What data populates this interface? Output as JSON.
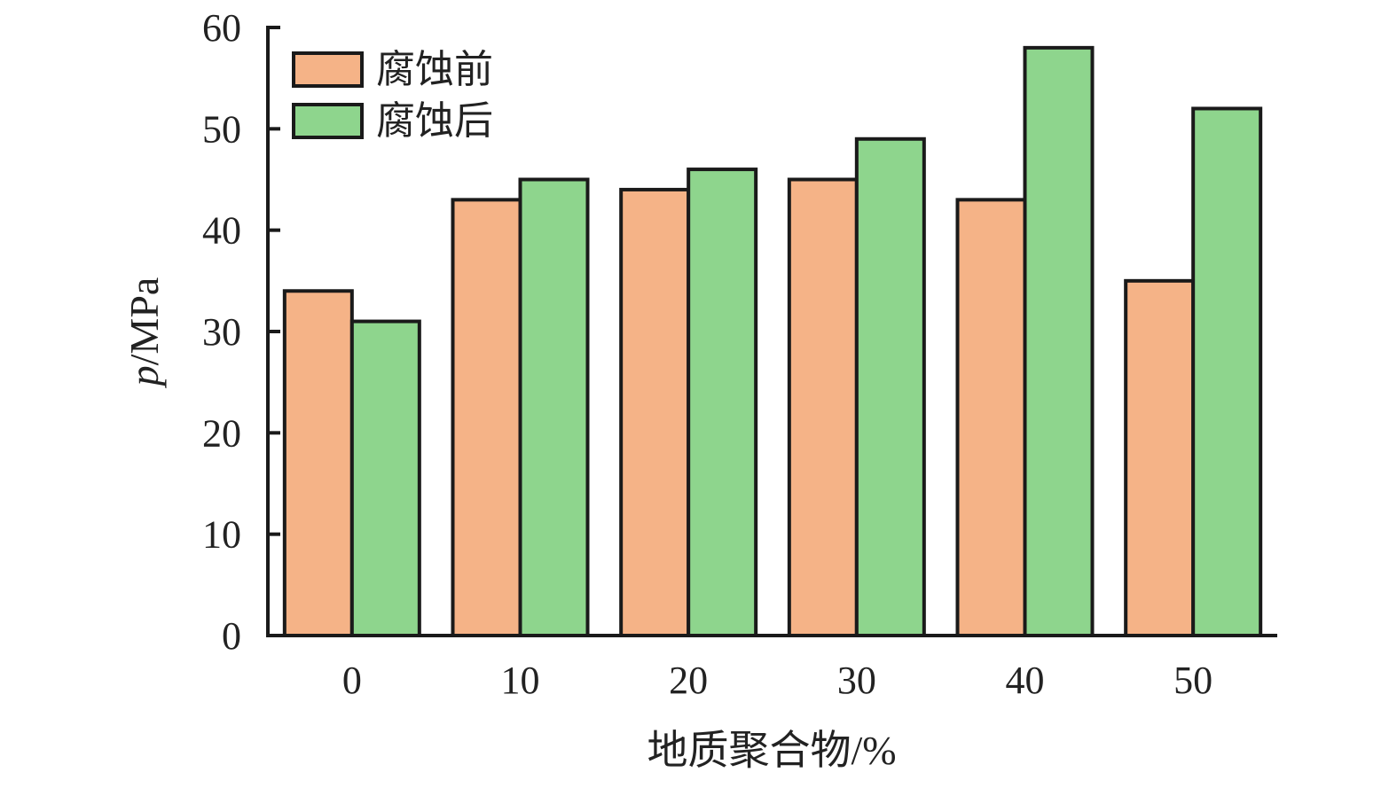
{
  "chart_data": {
    "type": "bar",
    "title": "",
    "xlabel": "地质聚合物/%",
    "ylabel_var": "p",
    "ylabel_unit": "/MPa",
    "categories": [
      "0",
      "10",
      "20",
      "30",
      "40",
      "50"
    ],
    "ylim": [
      0,
      60
    ],
    "yticks": [
      0,
      10,
      20,
      30,
      40,
      50,
      60
    ],
    "grid": false,
    "legend_position": "top-left",
    "series": [
      {
        "name": "腐蚀前",
        "color": "#F5B387",
        "values": [
          34,
          43,
          44,
          45,
          43,
          35
        ]
      },
      {
        "name": "腐蚀后",
        "color": "#8ED58D",
        "values": [
          31,
          45,
          46,
          49,
          58,
          52
        ]
      }
    ]
  }
}
